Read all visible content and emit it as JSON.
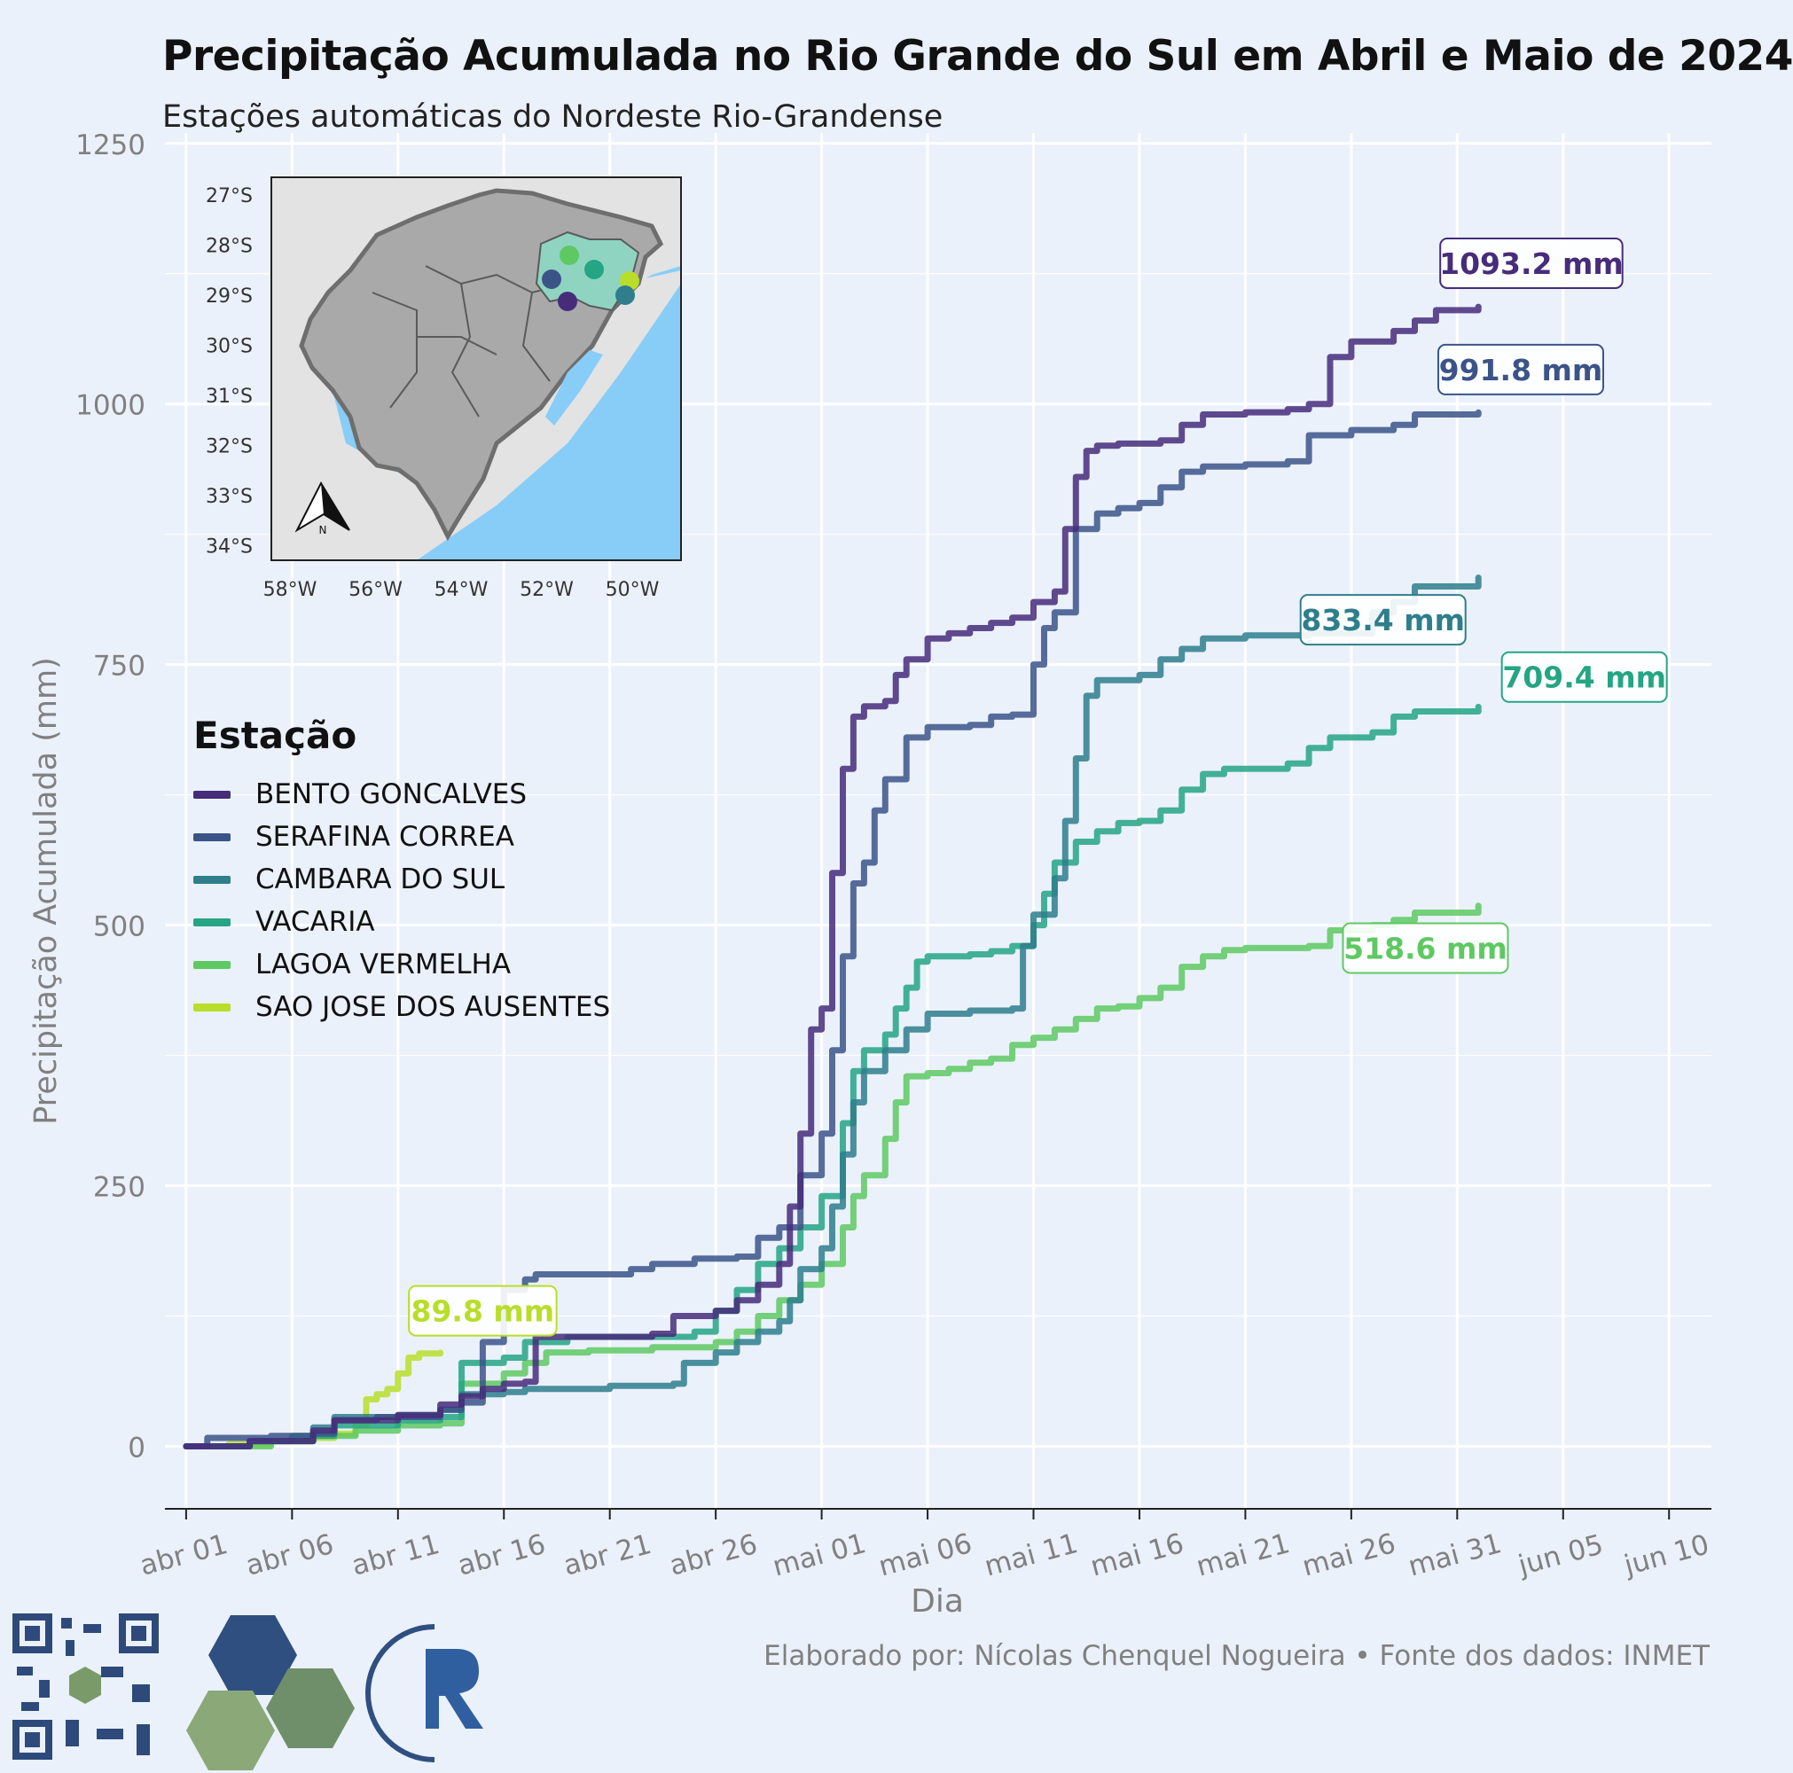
{
  "header": {
    "title": "Precipitação  Acumulada no Rio Grande do Sul em Abril e Maio de 2024",
    "subtitle": "Estações automáticas do Nordeste Rio-Grandense"
  },
  "caption": "Elaborado por: Nícolas Chenquel Nogueira • Fonte dos dados: INMET",
  "legend": {
    "title": "Estação",
    "items": [
      {
        "label": "BENTO GONCALVES",
        "color": "#472c7a"
      },
      {
        "label": "SERAFINA CORREA",
        "color": "#3b5488"
      },
      {
        "label": "CAMBARA DO SUL",
        "color": "#2e7e8c"
      },
      {
        "label": "VACARIA",
        "color": "#25a584"
      },
      {
        "label": "LAGOA VERMELHA",
        "color": "#5ec962"
      },
      {
        "label": "SAO JOSE DOS AUSENTES",
        "color": "#b8de29"
      }
    ]
  },
  "chart_data": {
    "type": "line",
    "title": "Precipitação  Acumulada no Rio Grande do Sul em Abril e Maio de 2024",
    "subtitle": "Estações automáticas do Nordeste Rio-Grandense",
    "xlabel": "Dia",
    "ylabel": "Precipitação Acumulada (mm)",
    "x_unit": "days since abr 01 (2024-04-01)",
    "xlim": [
      -1,
      72
    ],
    "ylim": [
      -60,
      1260
    ],
    "yticks": [
      0,
      250,
      500,
      750,
      1000,
      1250
    ],
    "xticks": [
      {
        "day": 0,
        "label": "abr 01"
      },
      {
        "day": 5,
        "label": "abr 06"
      },
      {
        "day": 10,
        "label": "abr 11"
      },
      {
        "day": 15,
        "label": "abr 16"
      },
      {
        "day": 20,
        "label": "abr 21"
      },
      {
        "day": 25,
        "label": "abr 26"
      },
      {
        "day": 30,
        "label": "mai 01"
      },
      {
        "day": 35,
        "label": "mai 06"
      },
      {
        "day": 40,
        "label": "mai 11"
      },
      {
        "day": 45,
        "label": "mai 16"
      },
      {
        "day": 50,
        "label": "mai 21"
      },
      {
        "day": 55,
        "label": "mai 26"
      },
      {
        "day": 60,
        "label": "mai 31"
      },
      {
        "day": 65,
        "label": "jun 05"
      },
      {
        "day": 70,
        "label": "jun 10"
      }
    ],
    "grid": true,
    "legend_position": "left-middle",
    "series": [
      {
        "name": "BENTO GONCALVES",
        "color": "#472c7a",
        "end_label": "1093.2 mm",
        "points": [
          [
            0,
            0
          ],
          [
            3,
            5
          ],
          [
            6,
            15
          ],
          [
            7,
            25
          ],
          [
            10,
            30
          ],
          [
            12,
            40
          ],
          [
            13,
            48
          ],
          [
            14,
            55
          ],
          [
            15,
            60
          ],
          [
            16,
            62
          ],
          [
            16.5,
            105
          ],
          [
            22,
            108
          ],
          [
            23,
            125
          ],
          [
            25,
            130
          ],
          [
            26,
            140
          ],
          [
            27,
            155
          ],
          [
            28,
            175
          ],
          [
            28.5,
            230
          ],
          [
            29,
            300
          ],
          [
            29.5,
            400
          ],
          [
            30,
            420
          ],
          [
            30.5,
            550
          ],
          [
            31,
            650
          ],
          [
            31.5,
            700
          ],
          [
            32,
            710
          ],
          [
            33,
            715
          ],
          [
            33.5,
            740
          ],
          [
            34,
            755
          ],
          [
            35,
            775
          ],
          [
            36,
            780
          ],
          [
            37,
            785
          ],
          [
            38,
            790
          ],
          [
            39,
            795
          ],
          [
            40,
            810
          ],
          [
            41,
            820
          ],
          [
            41.5,
            880
          ],
          [
            42,
            930
          ],
          [
            42.5,
            955
          ],
          [
            43,
            960
          ],
          [
            44,
            962
          ],
          [
            46,
            965
          ],
          [
            47,
            980
          ],
          [
            48,
            990
          ],
          [
            50,
            992
          ],
          [
            52,
            995
          ],
          [
            53,
            1000
          ],
          [
            54,
            1045
          ],
          [
            55,
            1060
          ],
          [
            57,
            1070
          ],
          [
            58,
            1080
          ],
          [
            59,
            1090
          ],
          [
            61,
            1093.2
          ]
        ]
      },
      {
        "name": "SERAFINA CORREA",
        "color": "#3b5488",
        "end_label": "991.8 mm",
        "points": [
          [
            0,
            0
          ],
          [
            1,
            8
          ],
          [
            4,
            10
          ],
          [
            6,
            12
          ],
          [
            7,
            25
          ],
          [
            9,
            28
          ],
          [
            12,
            35
          ],
          [
            13,
            42
          ],
          [
            14,
            100
          ],
          [
            15,
            150
          ],
          [
            16,
            160
          ],
          [
            16.5,
            165
          ],
          [
            21,
            170
          ],
          [
            22,
            175
          ],
          [
            24,
            180
          ],
          [
            26,
            182
          ],
          [
            27,
            200
          ],
          [
            28,
            210
          ],
          [
            29,
            260
          ],
          [
            30,
            300
          ],
          [
            30.5,
            380
          ],
          [
            31,
            470
          ],
          [
            31.5,
            540
          ],
          [
            32,
            560
          ],
          [
            32.5,
            610
          ],
          [
            33,
            640
          ],
          [
            34,
            680
          ],
          [
            35,
            690
          ],
          [
            37,
            692
          ],
          [
            38,
            700
          ],
          [
            39,
            702
          ],
          [
            40,
            750
          ],
          [
            40.5,
            785
          ],
          [
            41,
            800
          ],
          [
            42,
            880
          ],
          [
            43,
            895
          ],
          [
            44,
            900
          ],
          [
            45,
            905
          ],
          [
            46,
            920
          ],
          [
            47,
            935
          ],
          [
            48,
            940
          ],
          [
            50,
            942
          ],
          [
            52,
            945
          ],
          [
            53,
            970
          ],
          [
            55,
            975
          ],
          [
            57,
            980
          ],
          [
            58,
            990
          ],
          [
            61,
            991.8
          ]
        ]
      },
      {
        "name": "CAMBARA DO SUL",
        "color": "#2e7e8c",
        "end_label": "833.4 mm",
        "points": [
          [
            0,
            0
          ],
          [
            3,
            5
          ],
          [
            6,
            18
          ],
          [
            7,
            28
          ],
          [
            10,
            30
          ],
          [
            12,
            35
          ],
          [
            13,
            50
          ],
          [
            15,
            52
          ],
          [
            16,
            55
          ],
          [
            20,
            58
          ],
          [
            23,
            60
          ],
          [
            23.5,
            80
          ],
          [
            25,
            90
          ],
          [
            26,
            100
          ],
          [
            27,
            110
          ],
          [
            28,
            120
          ],
          [
            28.5,
            140
          ],
          [
            29,
            170
          ],
          [
            30,
            190
          ],
          [
            30.5,
            230
          ],
          [
            31,
            280
          ],
          [
            31.5,
            330
          ],
          [
            32,
            360
          ],
          [
            33,
            380
          ],
          [
            34,
            400
          ],
          [
            35,
            415
          ],
          [
            37,
            418
          ],
          [
            39,
            420
          ],
          [
            39.5,
            480
          ],
          [
            40,
            510
          ],
          [
            41,
            545
          ],
          [
            41.5,
            600
          ],
          [
            42,
            660
          ],
          [
            42.5,
            720
          ],
          [
            43,
            735
          ],
          [
            45,
            740
          ],
          [
            46,
            755
          ],
          [
            47,
            765
          ],
          [
            48,
            775
          ],
          [
            50,
            778
          ],
          [
            53,
            780
          ],
          [
            56,
            800
          ],
          [
            57,
            810
          ],
          [
            58,
            825
          ],
          [
            61,
            833.4
          ]
        ]
      },
      {
        "name": "VACARIA",
        "color": "#25a584",
        "end_label": "709.4 mm",
        "points": [
          [
            0,
            0
          ],
          [
            3,
            5
          ],
          [
            5,
            10
          ],
          [
            7,
            20
          ],
          [
            10,
            25
          ],
          [
            12,
            28
          ],
          [
            13,
            80
          ],
          [
            15,
            85
          ],
          [
            16,
            100
          ],
          [
            18,
            105
          ],
          [
            24,
            110
          ],
          [
            25,
            130
          ],
          [
            26,
            150
          ],
          [
            27,
            175
          ],
          [
            28,
            190
          ],
          [
            29,
            210
          ],
          [
            30,
            240
          ],
          [
            31,
            310
          ],
          [
            31.5,
            360
          ],
          [
            32,
            380
          ],
          [
            33,
            395
          ],
          [
            33.5,
            420
          ],
          [
            34,
            440
          ],
          [
            34.5,
            465
          ],
          [
            35,
            470
          ],
          [
            37,
            472
          ],
          [
            38,
            475
          ],
          [
            39,
            480
          ],
          [
            40,
            500
          ],
          [
            40.5,
            530
          ],
          [
            41,
            560
          ],
          [
            42,
            580
          ],
          [
            43,
            590
          ],
          [
            44,
            598
          ],
          [
            45,
            600
          ],
          [
            46,
            610
          ],
          [
            47,
            630
          ],
          [
            48,
            645
          ],
          [
            49,
            650
          ],
          [
            52,
            655
          ],
          [
            53,
            670
          ],
          [
            54,
            680
          ],
          [
            56,
            685
          ],
          [
            57,
            700
          ],
          [
            58,
            705
          ],
          [
            61,
            709.4
          ]
        ]
      },
      {
        "name": "LAGOA VERMELHA",
        "color": "#5ec962",
        "end_label": "518.6 mm",
        "points": [
          [
            0,
            0
          ],
          [
            4,
            5
          ],
          [
            6,
            10
          ],
          [
            8,
            15
          ],
          [
            10,
            20
          ],
          [
            12,
            22
          ],
          [
            13,
            60
          ],
          [
            15,
            70
          ],
          [
            16,
            80
          ],
          [
            17,
            90
          ],
          [
            19,
            92
          ],
          [
            22,
            95
          ],
          [
            25,
            100
          ],
          [
            26,
            110
          ],
          [
            27,
            125
          ],
          [
            28,
            140
          ],
          [
            29,
            155
          ],
          [
            30,
            175
          ],
          [
            31,
            210
          ],
          [
            31.5,
            240
          ],
          [
            32,
            260
          ],
          [
            33,
            295
          ],
          [
            33.5,
            330
          ],
          [
            34,
            355
          ],
          [
            35,
            358
          ],
          [
            36,
            362
          ],
          [
            37,
            368
          ],
          [
            38,
            372
          ],
          [
            39,
            385
          ],
          [
            40,
            392
          ],
          [
            41,
            400
          ],
          [
            42,
            410
          ],
          [
            43,
            420
          ],
          [
            44,
            422
          ],
          [
            45,
            430
          ],
          [
            46,
            440
          ],
          [
            47,
            460
          ],
          [
            48,
            470
          ],
          [
            49,
            476
          ],
          [
            50,
            478
          ],
          [
            53,
            480
          ],
          [
            54,
            495
          ],
          [
            56,
            500
          ],
          [
            57,
            505
          ],
          [
            58,
            512
          ],
          [
            61,
            518.6
          ]
        ]
      },
      {
        "name": "SAO JOSE DOS AUSENTES",
        "color": "#b8de29",
        "end_label": "89.8 mm",
        "points": [
          [
            0,
            0
          ],
          [
            2,
            2
          ],
          [
            4,
            5
          ],
          [
            6,
            8
          ],
          [
            7,
            12
          ],
          [
            8,
            20
          ],
          [
            8.5,
            45
          ],
          [
            9,
            50
          ],
          [
            9.5,
            55
          ],
          [
            10,
            70
          ],
          [
            10.5,
            85
          ],
          [
            11,
            89
          ],
          [
            12,
            89.8
          ]
        ]
      }
    ],
    "end_labels": [
      {
        "text": "1093.2 mm",
        "color": "#472c7a",
        "day": 63.5,
        "value": 1135
      },
      {
        "text": "991.8 mm",
        "color": "#3b5488",
        "day": 63,
        "value": 1033
      },
      {
        "text": "833.4 mm",
        "color": "#2e7e8c",
        "day": 56.5,
        "value": 793
      },
      {
        "text": "709.4 mm",
        "color": "#25a584",
        "day": 66,
        "value": 738
      },
      {
        "text": "518.6 mm",
        "color": "#5ec962",
        "day": 58.5,
        "value": 478
      },
      {
        "text": "89.8 mm",
        "color": "#b8de29",
        "day": 14,
        "value": 130
      }
    ]
  },
  "inset_map": {
    "lat_labels": [
      "27°S",
      "28°S",
      "29°S",
      "30°S",
      "31°S",
      "32°S",
      "33°S",
      "34°S"
    ],
    "lon_labels": [
      "58°W",
      "56°W",
      "54°W",
      "52°W",
      "50°W"
    ],
    "north_label": "N",
    "land_color": "#aaaaaa",
    "ocean_color": "#87cdf7",
    "highlight_color": "#8fd4c1"
  }
}
